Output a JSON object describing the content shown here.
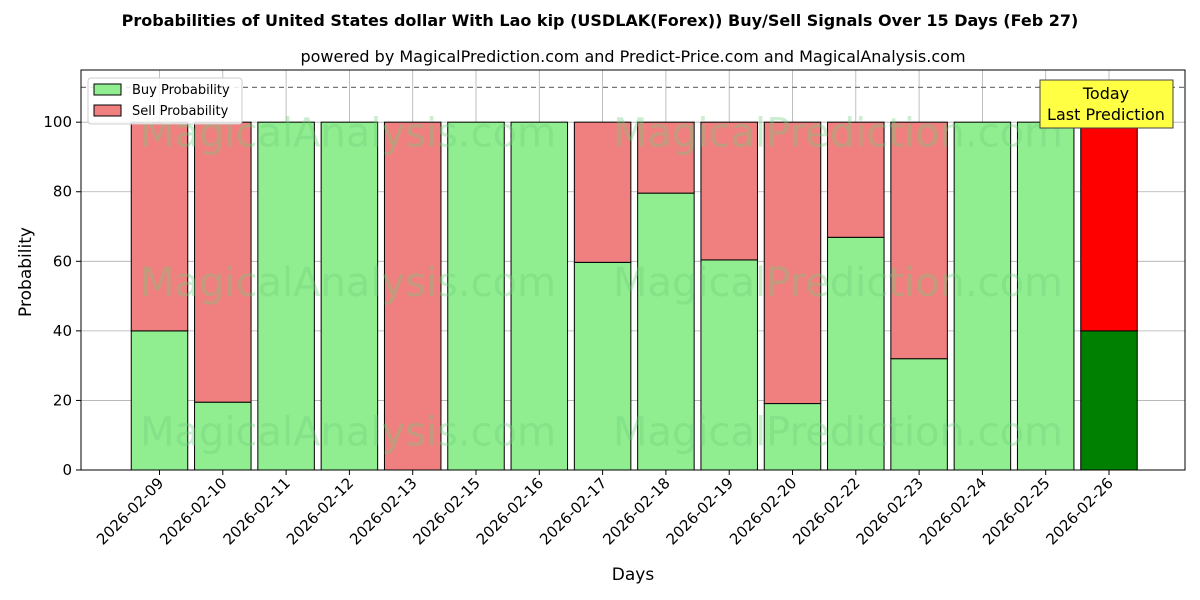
{
  "chart_data": {
    "type": "bar",
    "stacked": true,
    "title": "Probabilities of United States dollar With Lao kip (USDLAK(Forex)) Buy/Sell Signals Over 15 Days (Feb 27)",
    "subtitle": "powered by MagicalPrediction.com and Predict-Price.com and MagicalAnalysis.com",
    "xlabel": "Days",
    "ylabel": "Probability",
    "ylim": [
      0,
      115
    ],
    "yticks": [
      0,
      20,
      40,
      60,
      80,
      100
    ],
    "reference_line": 110,
    "grid": true,
    "legend_position": "top-left",
    "categories": [
      "2026-02-09",
      "2026-02-10",
      "2026-02-11",
      "2026-02-12",
      "2026-02-13",
      "2026-02-15",
      "2026-02-16",
      "2026-02-17",
      "2026-02-18",
      "2026-02-19",
      "2026-02-20",
      "2026-02-22",
      "2026-02-23",
      "2026-02-24",
      "2026-02-25",
      "2026-02-26"
    ],
    "series": [
      {
        "name": "Buy Probability",
        "color": "#90ee90",
        "highlight_color": "#008000",
        "values": [
          40,
          19.5,
          100,
          100,
          0,
          100,
          100,
          59.7,
          79.6,
          60.4,
          19.1,
          66.9,
          32,
          100,
          100,
          40
        ]
      },
      {
        "name": "Sell Probability",
        "color": "#f08080",
        "highlight_color": "#ff0000",
        "values": [
          60,
          80.5,
          0,
          0,
          100,
          0,
          0,
          40.3,
          20.4,
          39.6,
          80.9,
          33.1,
          68,
          0,
          0,
          60
        ]
      }
    ],
    "highlight_index": 15,
    "annotation": {
      "line1": "Today",
      "line2": "Last Prediction",
      "bg_color": "#ffff44"
    },
    "watermarks": [
      "MagicalAnalysis.com",
      "MagicalPrediction.com"
    ]
  }
}
